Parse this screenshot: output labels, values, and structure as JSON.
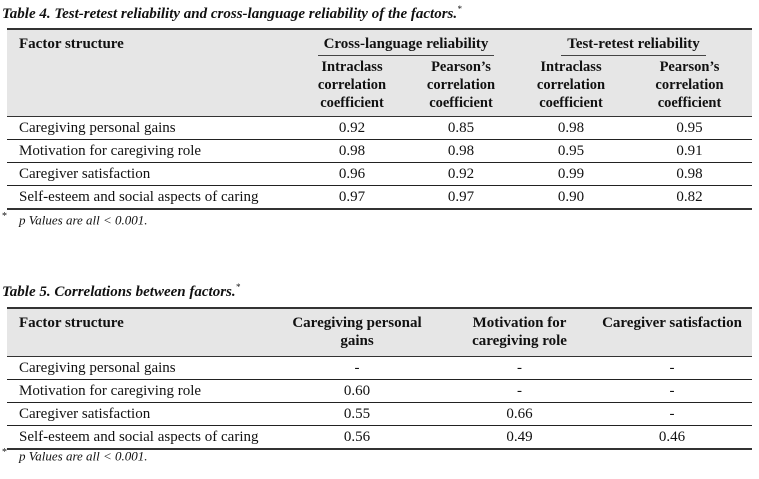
{
  "table4": {
    "caption": "Table 4. Test-retest reliability and cross-language reliability of the factors.",
    "caption_mark": "*",
    "header": {
      "factor": "Factor structure",
      "group1": "Cross-language reliability",
      "group2": "Test-retest reliability",
      "sub": [
        [
          "Intraclass",
          "correlation",
          "coefficient"
        ],
        [
          "Pearson’s",
          "correlation",
          "coefficient"
        ],
        [
          "Intraclass",
          "correlation",
          "coefficient"
        ],
        [
          "Pearson’s",
          "correlation",
          "coefficient"
        ]
      ]
    },
    "rows": [
      {
        "label": "Caregiving personal gains",
        "values": [
          "0.92",
          "0.85",
          "0.98",
          "0.95"
        ]
      },
      {
        "label": "Motivation for caregiving role",
        "values": [
          "0.98",
          "0.98",
          "0.95",
          "0.91"
        ]
      },
      {
        "label": "Caregiver satisfaction",
        "values": [
          "0.96",
          "0.92",
          "0.99",
          "0.98"
        ]
      },
      {
        "label": "Self-esteem and social aspects of caring",
        "values": [
          "0.97",
          "0.97",
          "0.90",
          "0.82"
        ]
      }
    ],
    "footnote_mark": "*",
    "footnote": "p Values are all < 0.001."
  },
  "table5": {
    "caption": "Table 5. Correlations between factors.",
    "caption_mark": "*",
    "header": {
      "factor": "Factor structure",
      "cols": [
        [
          "Caregiving personal",
          "gains"
        ],
        [
          "Motivation for",
          "caregiving role"
        ],
        [
          "Caregiver satisfaction",
          ""
        ]
      ]
    },
    "rows": [
      {
        "label": "Caregiving personal gains",
        "values": [
          "-",
          "-",
          "-"
        ]
      },
      {
        "label": "Motivation for caregiving role",
        "values": [
          "0.60",
          "-",
          "-"
        ]
      },
      {
        "label": "Caregiver satisfaction",
        "values": [
          "0.55",
          "0.66",
          "-"
        ]
      },
      {
        "label": "Self-esteem and social aspects of caring",
        "values": [
          "0.56",
          "0.49",
          "0.46"
        ]
      }
    ],
    "footnote_mark": "*",
    "footnote": "p Values are all < 0.001."
  }
}
